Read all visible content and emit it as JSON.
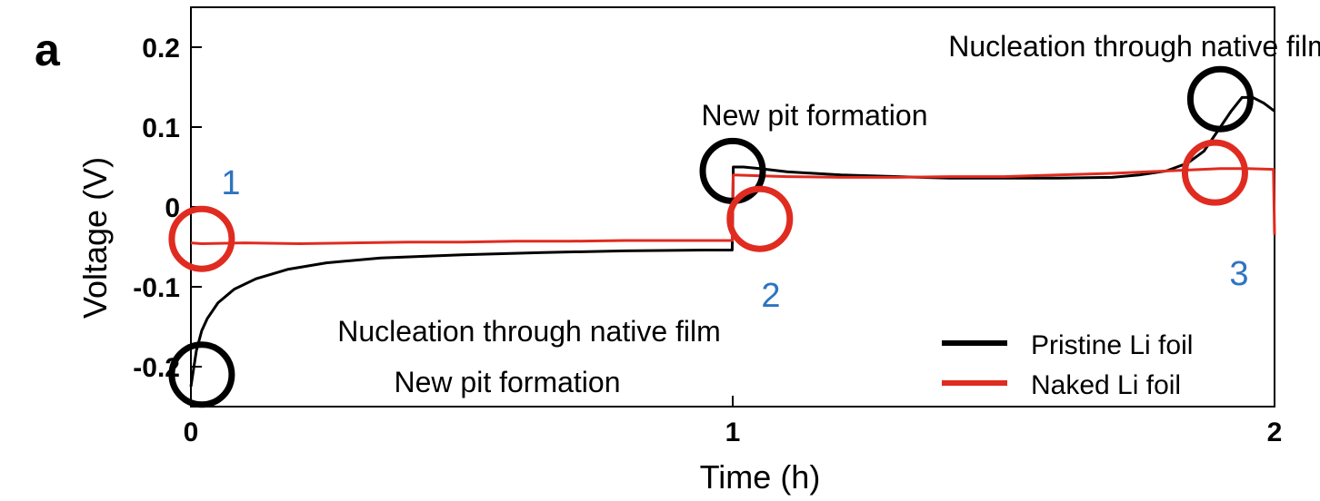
{
  "panel_label": "a",
  "chart_data": {
    "type": "line",
    "xlabel": "Time (h)",
    "ylabel": "Voltage (V)",
    "xlim": [
      0,
      2
    ],
    "ylim": [
      -0.25,
      0.25
    ],
    "xticks": [
      0,
      1,
      2
    ],
    "xtick_labels": [
      "0",
      "1",
      "2"
    ],
    "yticks": [
      -0.2,
      -0.1,
      0,
      0.1,
      0.2
    ],
    "ytick_labels": [
      "-0.2",
      "-0.1",
      "0",
      "0.1",
      "0.2"
    ],
    "grid": false,
    "legend_position": "bottom-right",
    "series": [
      {
        "name": "Pristine Li foil",
        "color": "#000000",
        "x": [
          0.0,
          0.01,
          0.02,
          0.03,
          0.05,
          0.08,
          0.12,
          0.18,
          0.25,
          0.35,
          0.5,
          0.65,
          0.8,
          0.95,
          0.999,
          1.001,
          1.02,
          1.05,
          1.1,
          1.2,
          1.4,
          1.6,
          1.7,
          1.75,
          1.8,
          1.84,
          1.87,
          1.9,
          1.92,
          1.94,
          1.96,
          1.98,
          2.0
        ],
        "y": [
          -0.225,
          -0.18,
          -0.155,
          -0.14,
          -0.12,
          -0.103,
          -0.09,
          -0.078,
          -0.07,
          -0.064,
          -0.06,
          -0.057,
          -0.055,
          -0.054,
          -0.054,
          0.05,
          0.05,
          0.048,
          0.044,
          0.04,
          0.036,
          0.036,
          0.037,
          0.04,
          0.045,
          0.055,
          0.07,
          0.1,
          0.12,
          0.137,
          0.137,
          0.13,
          0.12
        ]
      },
      {
        "name": "Naked Li foil",
        "color": "#e02b20",
        "x": [
          0.0,
          0.02,
          0.1,
          0.2,
          0.3,
          0.4,
          0.5,
          0.6,
          0.7,
          0.8,
          0.9,
          0.999,
          1.001,
          1.1,
          1.2,
          1.3,
          1.4,
          1.5,
          1.6,
          1.7,
          1.8,
          1.9,
          1.95,
          1.998,
          2.0
        ],
        "y": [
          -0.045,
          -0.046,
          -0.045,
          -0.046,
          -0.045,
          -0.044,
          -0.044,
          -0.043,
          -0.043,
          -0.042,
          -0.042,
          -0.042,
          0.04,
          0.038,
          0.037,
          0.037,
          0.038,
          0.038,
          0.04,
          0.042,
          0.045,
          0.048,
          0.048,
          0.047,
          -0.035
        ]
      }
    ],
    "circles": [
      {
        "color": "#000000",
        "x": 0.02,
        "y": -0.21
      },
      {
        "color": "#000000",
        "x": 1.0,
        "y": 0.045
      },
      {
        "color": "#000000",
        "x": 1.9,
        "y": 0.135
      },
      {
        "color": "#e02b20",
        "x": 0.02,
        "y": -0.04
      },
      {
        "color": "#e02b20",
        "x": 1.05,
        "y": -0.015
      },
      {
        "color": "#e02b20",
        "x": 1.89,
        "y": 0.043
      }
    ],
    "annotations": [
      {
        "text": "Nucleation through native film"
      },
      {
        "text": "New pit formation"
      },
      {
        "text": "Nucleation through native film"
      },
      {
        "text": "New pit formation"
      }
    ],
    "numbers": [
      "1",
      "2",
      "3"
    ]
  }
}
